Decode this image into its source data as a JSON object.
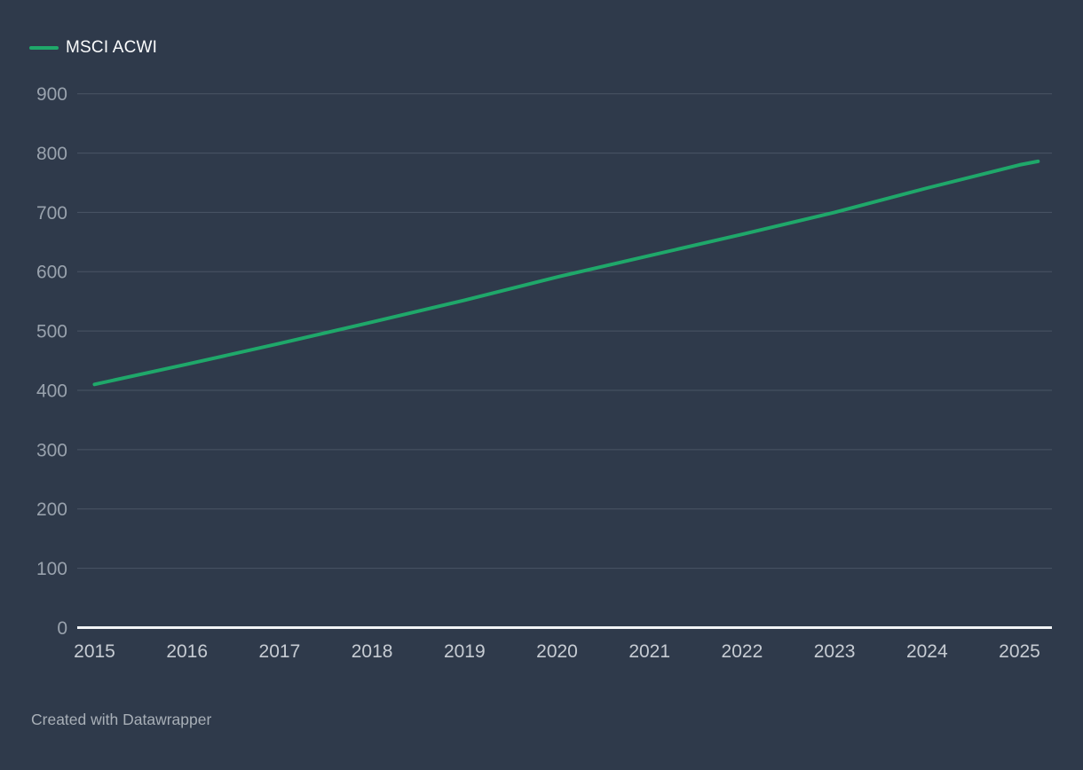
{
  "legend": {
    "label": "MSCI ACWI"
  },
  "footer": {
    "attribution": "Created with Datawrapper"
  },
  "colors": {
    "background": "#2f3a4b",
    "line": "#1fa86a",
    "grid": "#4a5565",
    "axis_line": "#f2f4f6",
    "y_tick_label": "#99a2ad",
    "x_tick_label": "#c7ccd3",
    "legend_label": "#fbfcfd",
    "attribution": "#a8afb7"
  },
  "chart_data": {
    "type": "line",
    "title": "",
    "xlabel": "",
    "ylabel": "",
    "legend_position": "top-left",
    "grid": true,
    "ylim": [
      0,
      900
    ],
    "xlim": [
      2014.81,
      2025.35
    ],
    "yticks": [
      0,
      100,
      200,
      300,
      400,
      500,
      600,
      700,
      800,
      900
    ],
    "xticks": [
      2015,
      2016,
      2017,
      2018,
      2019,
      2020,
      2021,
      2022,
      2023,
      2024,
      2025
    ],
    "series": [
      {
        "name": "MSCI ACWI",
        "x": [
          2015,
          2016,
          2017,
          2018,
          2019,
          2020,
          2021,
          2022,
          2023,
          2024,
          2025,
          2025.2
        ],
        "values": [
          410,
          444,
          479,
          515,
          552,
          591,
          627,
          663,
          700,
          741,
          780,
          786
        ]
      }
    ]
  }
}
